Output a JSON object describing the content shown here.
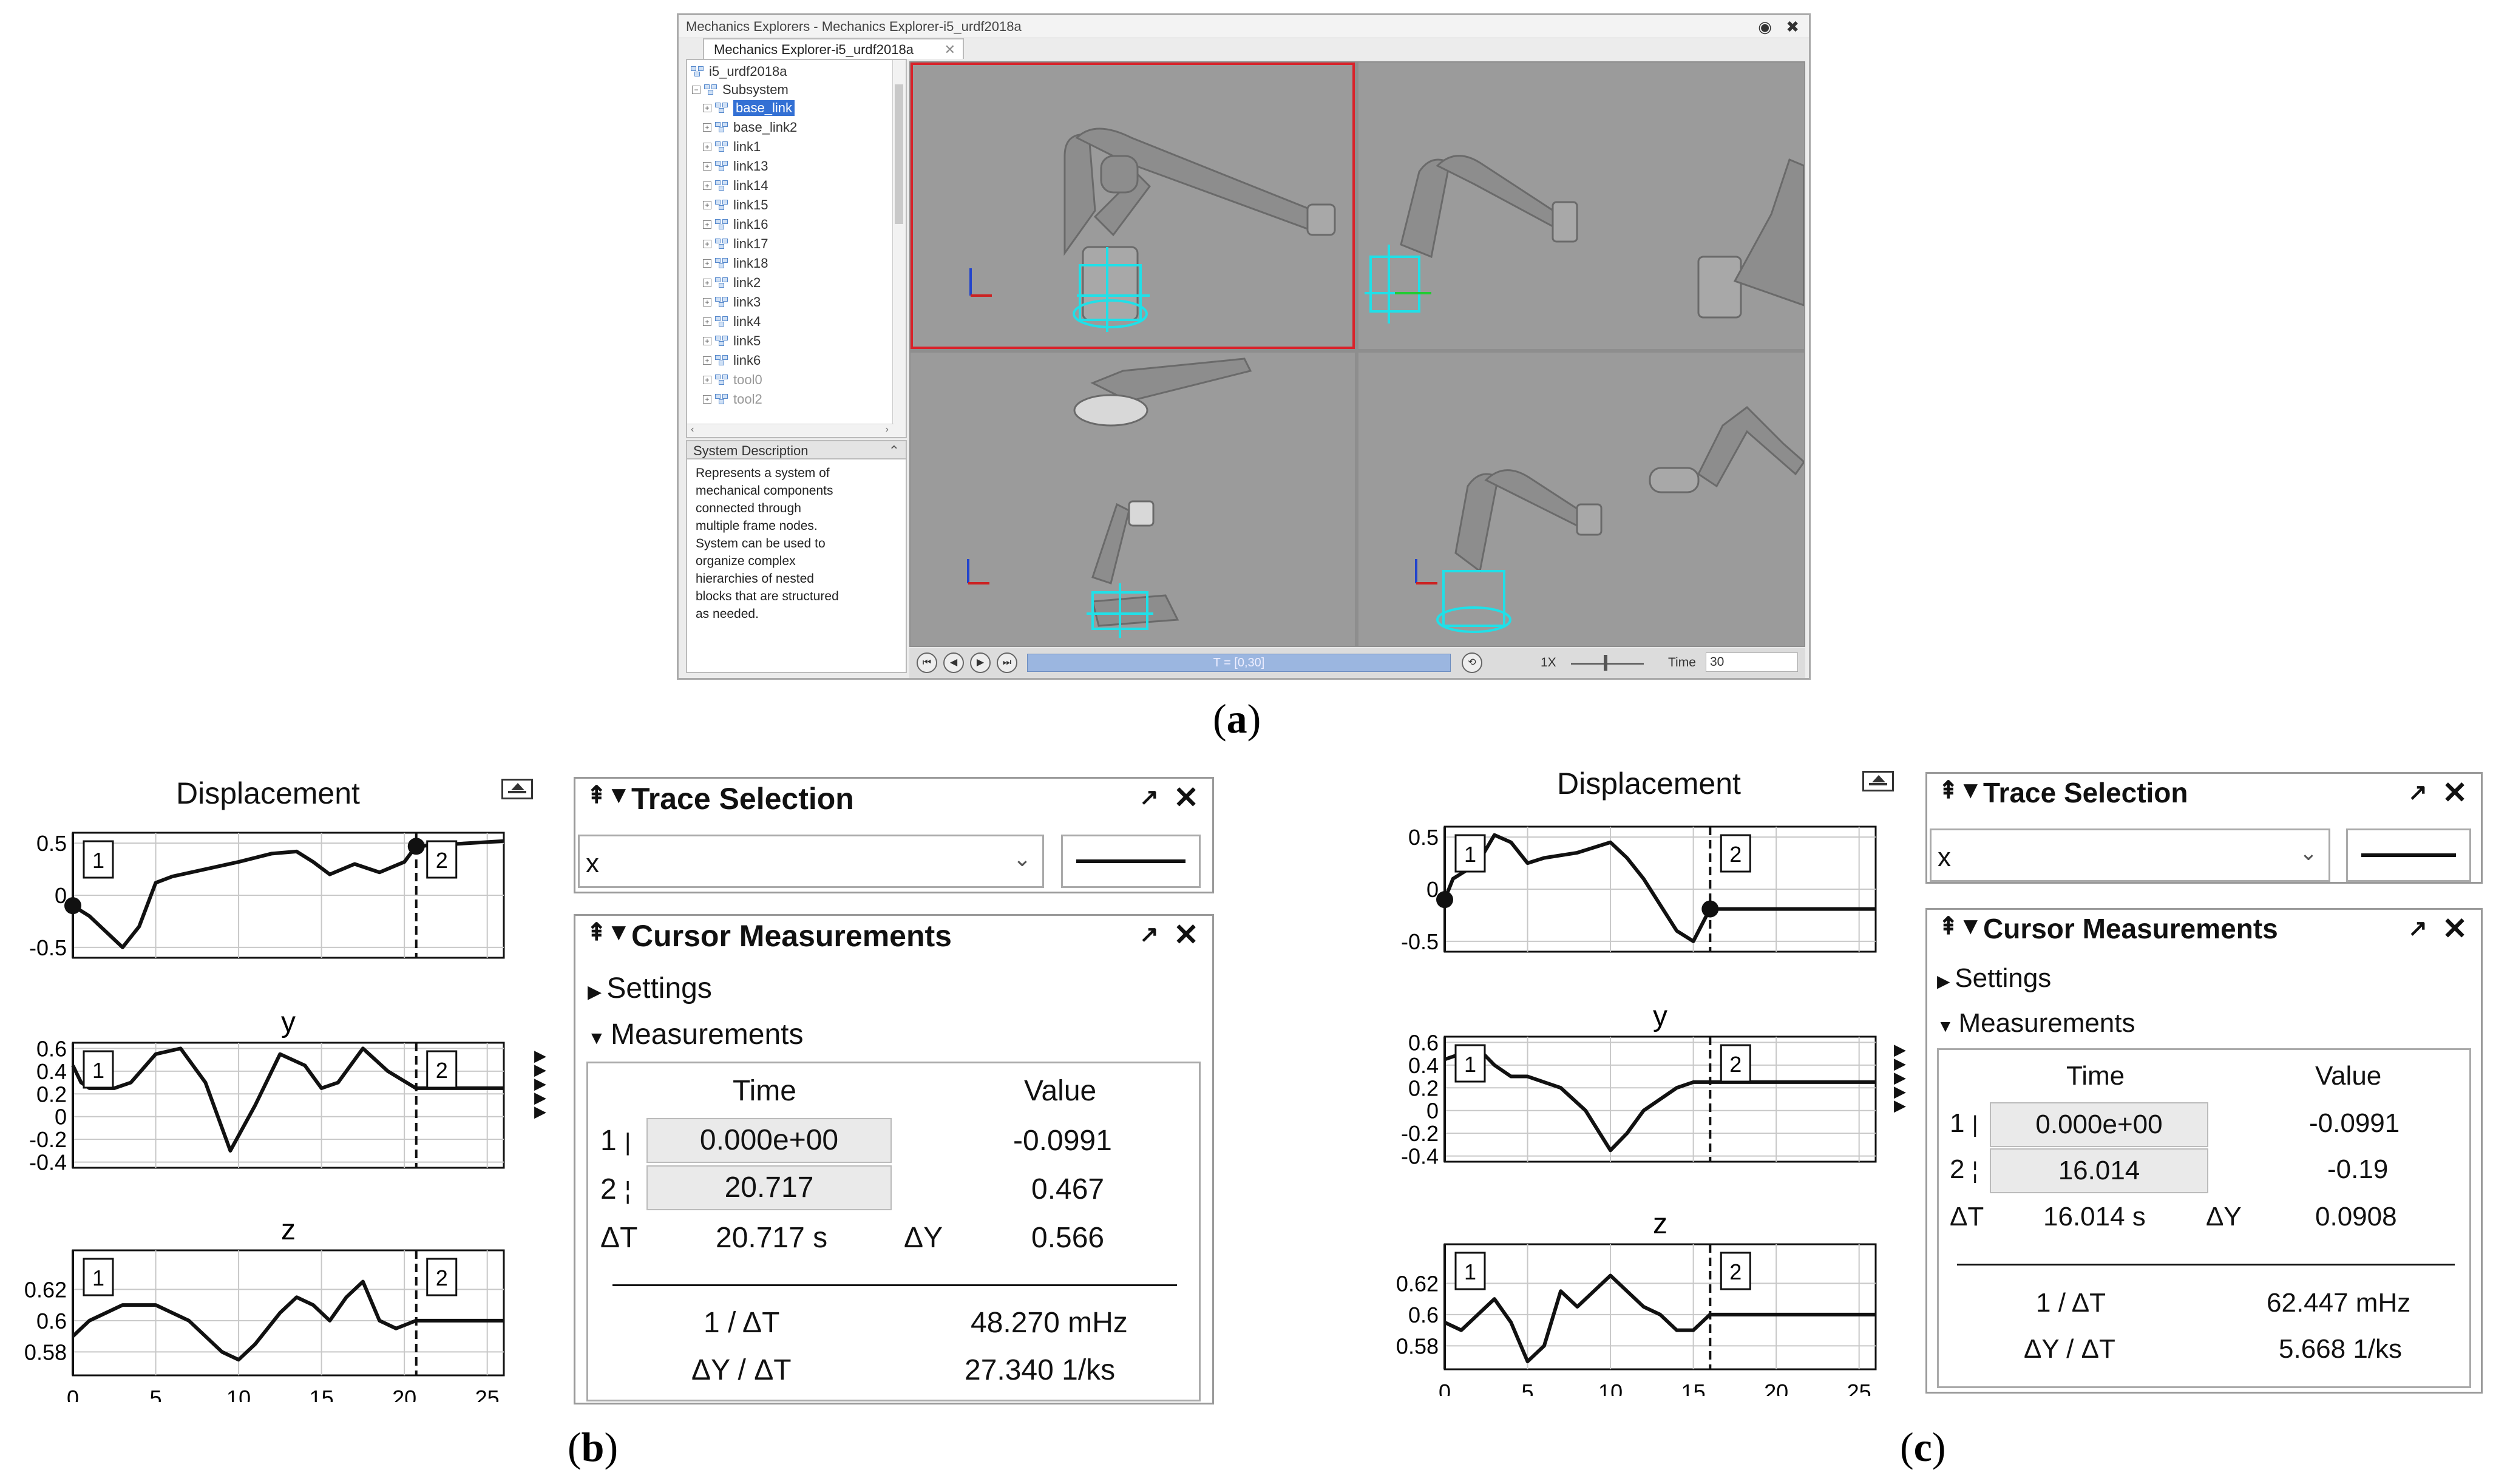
{
  "panel_a": {
    "window_title": "Mechanics Explorers - Mechanics Explorer-i5_urdf2018a",
    "window_controls": "◉ ✖",
    "tab_label": "Mechanics Explorer-i5_urdf2018a",
    "tab_close": "✕",
    "tree": {
      "root": "i5_urdf2018a",
      "subsystem": "Subsystem",
      "items": [
        {
          "label": "base_link",
          "selected": true
        },
        {
          "label": "base_link2"
        },
        {
          "label": "link1"
        },
        {
          "label": "link13"
        },
        {
          "label": "link14"
        },
        {
          "label": "link15"
        },
        {
          "label": "link16"
        },
        {
          "label": "link17"
        },
        {
          "label": "link18"
        },
        {
          "label": "link2"
        },
        {
          "label": "link3"
        },
        {
          "label": "link4"
        },
        {
          "label": "link5"
        },
        {
          "label": "link6"
        },
        {
          "label": "tool0",
          "dim": true
        },
        {
          "label": "tool2",
          "dim": true
        }
      ]
    },
    "system_description_header": "System Description",
    "system_description": "Represents a system of\nmechanical components\nconnected through\nmultiple frame nodes.\nSystem can be used to\norganize complex\nhierarchies of nested\nblocks that are structured\nas needed.",
    "playback": {
      "slider_label": "T = [0,30]",
      "speed_label": "1X",
      "time_label": "Time",
      "time_value": "30"
    },
    "colors": {
      "highlight_border": "#d9222a",
      "robot_accent": "#20e0e8",
      "viewport_bg": "#9b9b9b"
    }
  },
  "captions": {
    "a": "(a)",
    "b": "(b)",
    "c": "(c)",
    "a_letter": "a",
    "b_letter": "b",
    "c_letter": "c"
  },
  "scope_b": {
    "title": "Displacement",
    "y_label": "y",
    "z_label": "z",
    "x_ticks": [
      "0",
      "5",
      "10",
      "15",
      "20",
      "25"
    ],
    "x_tick_values": [
      0,
      5,
      10,
      15,
      20,
      25
    ],
    "x_range": [
      0,
      26
    ],
    "cursor1_label": "1",
    "cursor2_label": "2",
    "cursor1_time": 0,
    "cursor2_time": 20.717,
    "chart_data": [
      {
        "type": "line",
        "title": "Displacement",
        "ylim": [
          -0.6,
          0.6
        ],
        "yticks": [
          0.5,
          0,
          -0.5
        ],
        "x": [
          0,
          1,
          2,
          3,
          4,
          5,
          6,
          8,
          10,
          12,
          13.5,
          14.5,
          15.5,
          17,
          18.5,
          20,
          20.7,
          26
        ],
        "y": [
          -0.1,
          -0.2,
          -0.35,
          -0.5,
          -0.3,
          0.12,
          0.18,
          0.25,
          0.32,
          0.4,
          0.42,
          0.32,
          0.2,
          0.3,
          0.22,
          0.32,
          0.47,
          0.52
        ]
      },
      {
        "type": "line",
        "title": "y",
        "ylim": [
          -0.45,
          0.65
        ],
        "yticks": [
          0.6,
          0.4,
          0.2,
          0,
          -0.2,
          -0.4
        ],
        "x": [
          0,
          0.5,
          1,
          2.5,
          3.5,
          5,
          6.5,
          8,
          9.5,
          11,
          12.5,
          14,
          15,
          16,
          17.5,
          19,
          20.7,
          26
        ],
        "y": [
          0.45,
          0.3,
          0.25,
          0.25,
          0.3,
          0.55,
          0.6,
          0.3,
          -0.3,
          0.1,
          0.55,
          0.45,
          0.25,
          0.3,
          0.6,
          0.4,
          0.25,
          0.25
        ]
      },
      {
        "type": "line",
        "title": "z",
        "ylim": [
          0.565,
          0.645
        ],
        "yticks": [
          0.62,
          0.6,
          0.58
        ],
        "x": [
          0,
          1,
          2,
          3,
          5,
          7,
          9,
          10,
          11,
          12.5,
          13.5,
          14.5,
          15.5,
          16.5,
          17.5,
          18.5,
          19.5,
          20.7,
          26
        ],
        "y": [
          0.59,
          0.6,
          0.605,
          0.61,
          0.61,
          0.6,
          0.58,
          0.575,
          0.585,
          0.605,
          0.615,
          0.61,
          0.6,
          0.615,
          0.625,
          0.6,
          0.595,
          0.6,
          0.6
        ]
      }
    ]
  },
  "scope_c": {
    "title": "Displacement",
    "y_label": "y",
    "z_label": "z",
    "x_ticks": [
      "0",
      "5",
      "10",
      "15",
      "20",
      "25"
    ],
    "x_tick_values": [
      0,
      5,
      10,
      15,
      20,
      25
    ],
    "x_range": [
      0,
      26
    ],
    "cursor1_label": "1",
    "cursor2_label": "2",
    "cursor1_time": 0,
    "cursor2_time": 16.014,
    "chart_data": [
      {
        "type": "line",
        "title": "Displacement",
        "ylim": [
          -0.6,
          0.6
        ],
        "yticks": [
          0.5,
          0,
          -0.5
        ],
        "x": [
          0,
          0.5,
          1,
          2,
          3,
          4,
          5,
          6,
          8,
          10,
          11,
          12,
          13,
          14,
          15,
          16,
          26
        ],
        "y": [
          -0.1,
          0.1,
          0.15,
          0.25,
          0.52,
          0.45,
          0.25,
          0.3,
          0.35,
          0.45,
          0.3,
          0.1,
          -0.15,
          -0.4,
          -0.5,
          -0.19,
          -0.19
        ]
      },
      {
        "type": "line",
        "title": "y",
        "ylim": [
          -0.45,
          0.65
        ],
        "yticks": [
          0.6,
          0.4,
          0.2,
          0,
          -0.2,
          -0.4
        ],
        "x": [
          0,
          1,
          2,
          3,
          4,
          5,
          6,
          7,
          8.5,
          10,
          11,
          12,
          13,
          14,
          15,
          16,
          26
        ],
        "y": [
          0.45,
          0.5,
          0.55,
          0.4,
          0.3,
          0.3,
          0.25,
          0.2,
          0.0,
          -0.35,
          -0.2,
          0.0,
          0.1,
          0.2,
          0.25,
          0.25,
          0.25
        ]
      },
      {
        "type": "line",
        "title": "z",
        "ylim": [
          0.565,
          0.645
        ],
        "yticks": [
          0.62,
          0.6,
          0.58
        ],
        "x": [
          0,
          1,
          2,
          3,
          4,
          5,
          6,
          7,
          8,
          9,
          10,
          11,
          12,
          13,
          14,
          15,
          16,
          26
        ],
        "y": [
          0.595,
          0.59,
          0.6,
          0.61,
          0.595,
          0.57,
          0.58,
          0.615,
          0.605,
          0.615,
          0.625,
          0.615,
          0.605,
          0.6,
          0.59,
          0.59,
          0.6,
          0.6
        ]
      }
    ]
  },
  "meas_b": {
    "trace_title": "Trace Selection",
    "trace_value": "x",
    "cursor_title": "Cursor Measurements",
    "settings_label": "Settings",
    "measurements_label": "Measurements",
    "col_time": "Time",
    "col_value": "Value",
    "row1_idx": "1",
    "row1_time": "0.000e+00",
    "row1_value": "-0.0991",
    "row2_idx": "2",
    "row2_time": "20.717",
    "row2_value": "0.467",
    "dt_label": "ΔT",
    "dt_value": "20.717 s",
    "dy_label": "ΔY",
    "dy_value": "0.566",
    "inv_dt_label": "1 / ΔT",
    "inv_dt_value": "48.270 mHz",
    "dydt_label": "ΔY / ΔT",
    "dydt_value": "27.340 1/ks"
  },
  "meas_c": {
    "trace_title": "Trace Selection",
    "trace_value": "x",
    "cursor_title": "Cursor Measurements",
    "settings_label": "Settings",
    "measurements_label": "Measurements",
    "col_time": "Time",
    "col_value": "Value",
    "row1_idx": "1",
    "row1_time": "0.000e+00",
    "row1_value": "-0.0991",
    "row2_idx": "2",
    "row2_time": "16.014",
    "row2_value": "-0.19",
    "dt_label": "ΔT",
    "dt_value": "16.014 s",
    "dy_label": "ΔY",
    "dy_value": "0.0908",
    "inv_dt_label": "1 / ΔT",
    "inv_dt_value": "62.447 mHz",
    "dydt_label": "ΔY / ΔT",
    "dydt_value": "5.668 1/ks"
  }
}
